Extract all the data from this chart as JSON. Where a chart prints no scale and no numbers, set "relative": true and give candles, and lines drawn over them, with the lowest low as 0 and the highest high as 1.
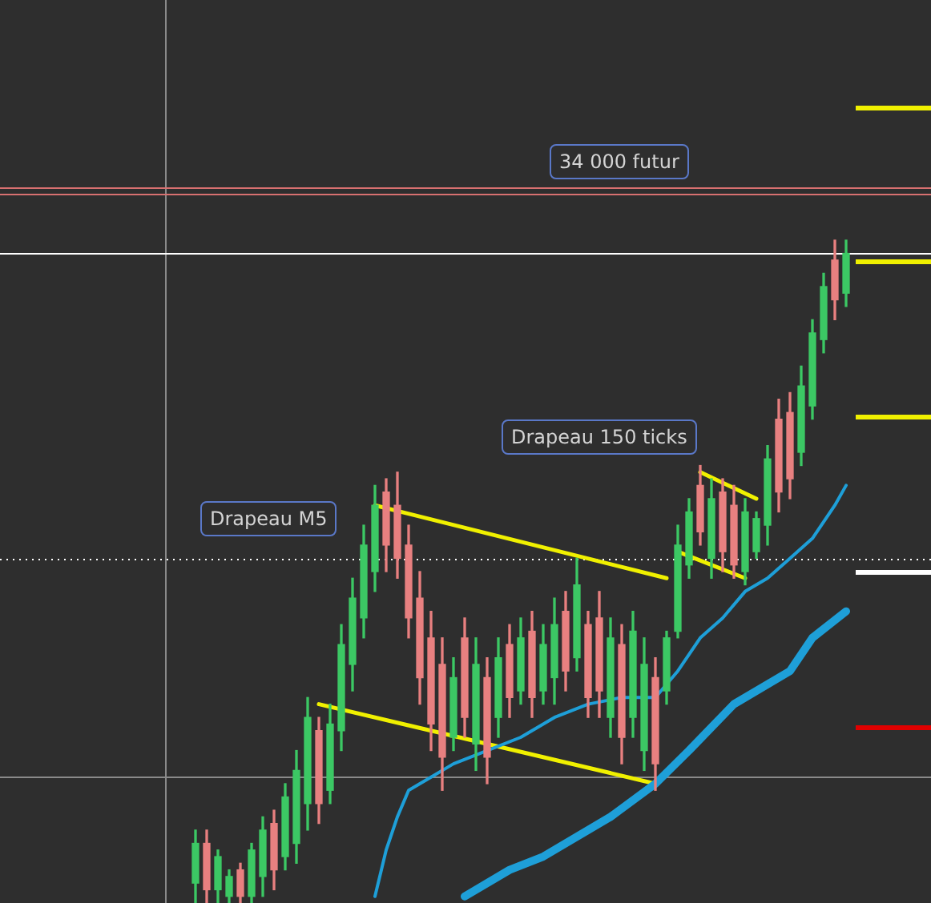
{
  "chart_data": {
    "type": "candlestick",
    "relative": true,
    "legend": false,
    "tick_labels": false,
    "categories": [
      null,
      null,
      null,
      null,
      null,
      null,
      null,
      null,
      null,
      null,
      null,
      null,
      null,
      null,
      null,
      null,
      null,
      null,
      null,
      null,
      null,
      null,
      null,
      null,
      null,
      null,
      null,
      null,
      null,
      null,
      null,
      null,
      null,
      null,
      null,
      null,
      null,
      null,
      null,
      null,
      null,
      null,
      null,
      null,
      null,
      null,
      null,
      null,
      null,
      null,
      null,
      null,
      null,
      null,
      null,
      null,
      null,
      null,
      null
    ],
    "ohlc": [
      [
        0.03,
        0.11,
        0,
        0.09
      ],
      [
        0.09,
        0.11,
        0,
        0.02
      ],
      [
        0.02,
        0.08,
        0,
        0.07
      ],
      [
        0.01,
        0.05,
        0,
        0.04
      ],
      [
        0.05,
        0.06,
        0,
        0.01
      ],
      [
        0.01,
        0.09,
        0,
        0.08
      ],
      [
        0.04,
        0.13,
        0.01,
        0.11
      ],
      [
        0.12,
        0.14,
        0.02,
        0.05
      ],
      [
        0.07,
        0.18,
        0.05,
        0.16
      ],
      [
        0.09,
        0.23,
        0.06,
        0.2
      ],
      [
        0.15,
        0.31,
        0.11,
        0.28
      ],
      [
        0.26,
        0.28,
        0.12,
        0.15
      ],
      [
        0.17,
        0.3,
        0.15,
        0.27
      ],
      [
        0.26,
        0.42,
        0.23,
        0.39
      ],
      [
        0.36,
        0.49,
        0.32,
        0.46
      ],
      [
        0.43,
        0.57,
        0.4,
        0.54
      ],
      [
        0.5,
        0.63,
        0.47,
        0.6
      ],
      [
        0.62,
        0.64,
        0.5,
        0.54
      ],
      [
        0.6,
        0.65,
        0.49,
        0.52
      ],
      [
        0.54,
        0.57,
        0.4,
        0.43
      ],
      [
        0.46,
        0.5,
        0.3,
        0.34
      ],
      [
        0.4,
        0.44,
        0.23,
        0.27
      ],
      [
        0.36,
        0.4,
        0.17,
        0.22
      ],
      [
        0.25,
        0.37,
        0.23,
        0.34
      ],
      [
        0.4,
        0.43,
        0.25,
        0.28
      ],
      [
        0.24,
        0.4,
        0.2,
        0.36
      ],
      [
        0.34,
        0.37,
        0.18,
        0.22
      ],
      [
        0.28,
        0.4,
        0.25,
        0.37
      ],
      [
        0.39,
        0.42,
        0.28,
        0.31
      ],
      [
        0.32,
        0.43,
        0.3,
        0.4
      ],
      [
        0.41,
        0.44,
        0.28,
        0.31
      ],
      [
        0.32,
        0.42,
        0.3,
        0.39
      ],
      [
        0.34,
        0.46,
        0.3,
        0.42
      ],
      [
        0.44,
        0.47,
        0.32,
        0.35
      ],
      [
        0.37,
        0.52,
        0.35,
        0.48
      ],
      [
        0.42,
        0.44,
        0.28,
        0.31
      ],
      [
        0.43,
        0.47,
        0.28,
        0.32
      ],
      [
        0.28,
        0.43,
        0.25,
        0.4
      ],
      [
        0.39,
        0.42,
        0.21,
        0.25
      ],
      [
        0.28,
        0.44,
        0.25,
        0.41
      ],
      [
        0.23,
        0.4,
        0.2,
        0.36
      ],
      [
        0.34,
        0.37,
        0.17,
        0.21
      ],
      [
        0.32,
        0.41,
        0.3,
        0.4
      ],
      [
        0.41,
        0.57,
        0.4,
        0.54
      ],
      [
        0.51,
        0.61,
        0.49,
        0.59
      ],
      [
        0.63,
        0.66,
        0.54,
        0.56
      ],
      [
        0.52,
        0.64,
        0.49,
        0.61
      ],
      [
        0.62,
        0.64,
        0.5,
        0.53
      ],
      [
        0.6,
        0.63,
        0.49,
        0.51
      ],
      [
        0.5,
        0.61,
        0.48,
        0.59
      ],
      [
        0.53,
        0.59,
        0.52,
        0.58
      ],
      [
        0.57,
        0.69,
        0.54,
        0.67
      ],
      [
        0.73,
        0.76,
        0.59,
        0.62
      ],
      [
        0.74,
        0.77,
        0.61,
        0.64
      ],
      [
        0.68,
        0.81,
        0.66,
        0.78
      ],
      [
        0.75,
        0.88,
        0.73,
        0.86
      ],
      [
        0.85,
        0.95,
        0.83,
        0.93
      ],
      [
        0.97,
        1,
        0.88,
        0.91
      ],
      [
        0.92,
        1,
        0.9,
        0.98
      ]
    ],
    "colors": [
      "#3cc864",
      "#e88080",
      "#3cc864",
      "#3cc864",
      "#e88080",
      "#3cc864",
      "#3cc864",
      "#e88080",
      "#3cc864",
      "#3cc864",
      "#3cc864",
      "#e88080",
      "#3cc864",
      "#3cc864",
      "#3cc864",
      "#3cc864",
      "#3cc864",
      "#e88080",
      "#e88080",
      "#e88080",
      "#e88080",
      "#e88080",
      "#e88080",
      "#3cc864",
      "#e88080",
      "#3cc864",
      "#e88080",
      "#3cc864",
      "#e88080",
      "#3cc864",
      "#e88080",
      "#3cc864",
      "#3cc864",
      "#e88080",
      "#3cc864",
      "#e88080",
      "#e88080",
      "#3cc864",
      "#e88080",
      "#3cc864",
      "#3cc864",
      "#e88080",
      "#3cc864",
      "#3cc864",
      "#3cc864",
      "#e88080",
      "#3cc864",
      "#e88080",
      "#e88080",
      "#3cc864",
      "#3cc864",
      "#3cc864",
      "#e88080",
      "#e88080",
      "#3cc864",
      "#3cc864",
      "#3cc864",
      "#e88080",
      "#3cc864"
    ],
    "series": [
      {
        "type": "line",
        "color": "#1e9fd8",
        "values": [
          null,
          null,
          null,
          null,
          null,
          null,
          null,
          null,
          null,
          null,
          null,
          null,
          null,
          null,
          null,
          null,
          0.01,
          0.08,
          0.13,
          0.17,
          0.18,
          0.19,
          null,
          0.21,
          null,
          null,
          0.23,
          null,
          null,
          0.25,
          null,
          null,
          0.28,
          null,
          null,
          0.3,
          null,
          null,
          0.31,
          null,
          null,
          0.31,
          null,
          0.35,
          null,
          0.4,
          null,
          0.43,
          null,
          0.47,
          null,
          0.49,
          null,
          0.52,
          null,
          0.55,
          null,
          0.6,
          0.63
        ]
      },
      {
        "type": "line",
        "color": "#1e9fd8",
        "values": [
          null,
          null,
          null,
          null,
          null,
          null,
          null,
          null,
          null,
          null,
          null,
          null,
          null,
          null,
          null,
          null,
          null,
          null,
          null,
          null,
          null,
          null,
          null,
          null,
          0.01,
          null,
          null,
          null,
          0.05,
          null,
          null,
          0.07,
          null,
          null,
          null,
          null,
          null,
          0.13,
          null,
          null,
          null,
          0.18,
          null,
          null,
          0.23,
          null,
          null,
          null,
          0.3,
          null,
          null,
          null,
          null,
          0.35,
          null,
          0.4,
          null,
          null,
          0.44
        ]
      },
      {
        "type": "line",
        "color": "#f0f000",
        "values": [
          null,
          null,
          null,
          null,
          null,
          null,
          null,
          null,
          null,
          null,
          null,
          null,
          null,
          null,
          null,
          null,
          0.6,
          null,
          null,
          null,
          null,
          null,
          null,
          null,
          null,
          null,
          null,
          null,
          null,
          null,
          null,
          null,
          null,
          null,
          null,
          null,
          null,
          null,
          null,
          null,
          null,
          null,
          0.49,
          null,
          null,
          null,
          null,
          null,
          null,
          null,
          null,
          null,
          null,
          null,
          null,
          null,
          null,
          null,
          null
        ]
      },
      {
        "type": "line",
        "color": "#f0f000",
        "values": [
          null,
          null,
          null,
          null,
          null,
          null,
          null,
          null,
          null,
          null,
          null,
          0.3,
          null,
          null,
          null,
          null,
          null,
          null,
          null,
          null,
          null,
          null,
          null,
          null,
          null,
          null,
          null,
          null,
          null,
          null,
          null,
          null,
          null,
          null,
          null,
          null,
          null,
          null,
          null,
          null,
          null,
          0.18,
          null,
          null,
          null,
          null,
          null,
          null,
          null,
          null,
          null,
          null,
          null,
          null,
          null,
          null,
          null,
          null,
          null
        ]
      },
      {
        "type": "line",
        "color": "#f0f000",
        "values": [
          null,
          null,
          null,
          null,
          null,
          null,
          null,
          null,
          null,
          null,
          null,
          null,
          null,
          null,
          null,
          null,
          null,
          null,
          null,
          null,
          null,
          null,
          null,
          null,
          null,
          null,
          null,
          null,
          null,
          null,
          null,
          null,
          null,
          null,
          null,
          null,
          null,
          null,
          null,
          null,
          null,
          null,
          null,
          null,
          null,
          0.65,
          null,
          null,
          null,
          null,
          0.61,
          null,
          null,
          null,
          null,
          null,
          null,
          null,
          null
        ]
      },
      {
        "type": "line",
        "color": "#f0f000",
        "values": [
          null,
          null,
          null,
          null,
          null,
          null,
          null,
          null,
          null,
          null,
          null,
          null,
          null,
          null,
          null,
          null,
          null,
          null,
          null,
          null,
          null,
          null,
          null,
          null,
          null,
          null,
          null,
          null,
          null,
          null,
          null,
          null,
          null,
          null,
          null,
          null,
          null,
          null,
          null,
          null,
          null,
          null,
          null,
          0.53,
          null,
          null,
          null,
          null,
          null,
          0.49,
          null,
          null,
          null,
          null,
          null,
          null,
          null,
          null,
          null
        ]
      }
    ],
    "ref_lines": [
      {
        "axis": "y",
        "value": 1.08,
        "color": "#d87070",
        "line_style": "solid"
      },
      {
        "axis": "y",
        "value": 1.07,
        "color": "#d87070",
        "line_style": "solid"
      },
      {
        "axis": "y",
        "value": 0.98,
        "color": "#ffffff",
        "line_style": "solid"
      },
      {
        "axis": "y",
        "value": 0.52,
        "color": "#ffffff",
        "line_style": "dotted"
      },
      {
        "axis": "y",
        "value": 0.19,
        "color": "#8a8a8a",
        "line_style": "solid"
      }
    ],
    "annotations": [
      "34 000 futur",
      "Drapeau 150 ticks",
      "Drapeau M5"
    ]
  }
}
